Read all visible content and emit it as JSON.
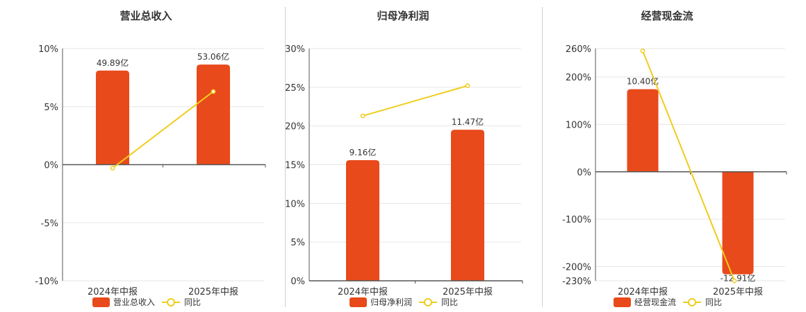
{
  "colors": {
    "bar": "#e84a1b",
    "line": "#f0cc1c",
    "grid": "#e6e6e6",
    "axis": "#555555",
    "text": "#333333"
  },
  "legend": {
    "line_label": "同比"
  },
  "chart_data": [
    {
      "type": "bar",
      "title": "营业总收入",
      "categories": [
        "2024年中报",
        "2025年中报"
      ],
      "bar_series": {
        "name": "营业总收入",
        "labels": [
          "49.89亿",
          "53.06亿"
        ],
        "values": [
          49.89,
          53.06
        ]
      },
      "line_series": {
        "name": "同比",
        "values": [
          -0.3,
          6.3
        ]
      },
      "y_axis": {
        "min": -10,
        "max": 10,
        "ticks": [
          10,
          5,
          0,
          -5,
          -10
        ],
        "unit": "%"
      },
      "grid": true
    },
    {
      "type": "bar",
      "title": "归母净利润",
      "categories": [
        "2024年中报",
        "2025年中报"
      ],
      "bar_series": {
        "name": "归母净利润",
        "labels": [
          "9.16亿",
          "11.47亿"
        ],
        "values": [
          9.16,
          11.47
        ]
      },
      "line_series": {
        "name": "同比",
        "values": [
          21.3,
          25.2
        ]
      },
      "y_axis": {
        "min": 0,
        "max": 30,
        "ticks": [
          30,
          25,
          20,
          15,
          10,
          5,
          0
        ],
        "unit": "%"
      },
      "grid": true
    },
    {
      "type": "bar",
      "title": "经营现金流",
      "categories": [
        "2024年中报",
        "2025年中报"
      ],
      "bar_series": {
        "name": "经营现金流",
        "labels": [
          "10.40亿",
          "-12.91亿"
        ],
        "values": [
          10.4,
          -12.91
        ]
      },
      "line_series": {
        "name": "同比",
        "values": [
          255,
          -230
        ]
      },
      "y_axis": {
        "min": -230,
        "max": 260,
        "ticks": [
          260,
          200,
          100,
          0,
          -100,
          -200,
          -230
        ],
        "unit": "%"
      },
      "grid": true
    }
  ]
}
